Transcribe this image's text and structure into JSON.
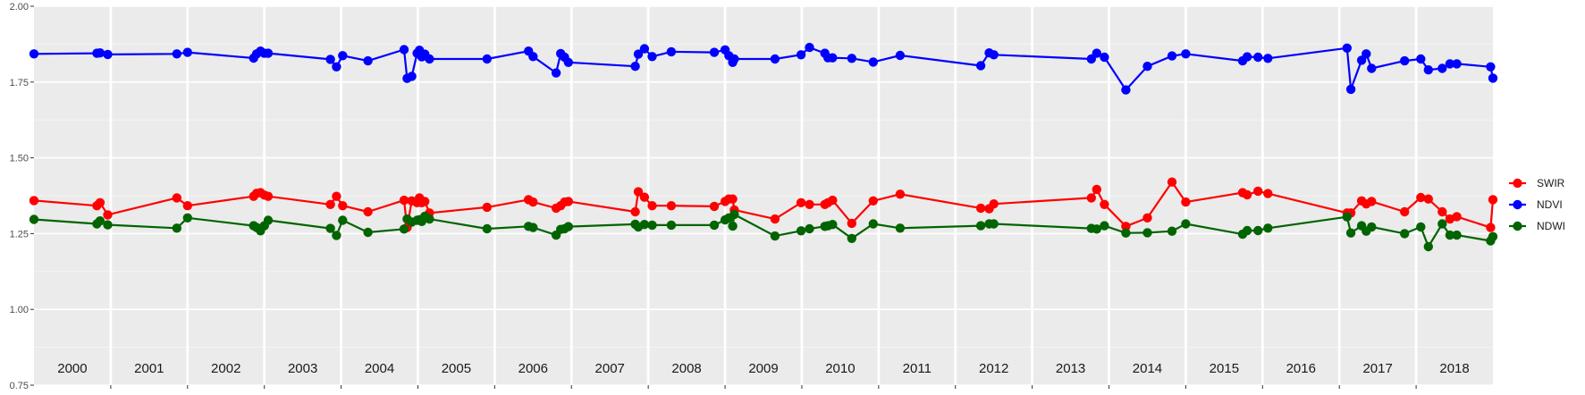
{
  "chart_data": {
    "type": "line",
    "title": "",
    "xlabel": "",
    "ylabel": "",
    "xlim": [
      2000.0,
      2019.0
    ],
    "ylim": [
      0.75,
      2.0
    ],
    "grid": true,
    "legend_position": "right",
    "y_ticks": [
      0.75,
      1.0,
      1.25,
      1.5,
      1.75,
      2.0
    ],
    "y_tick_labels": [
      "0.75",
      "1.00",
      "1.25",
      "1.50",
      "1.75",
      "2.00"
    ],
    "year_panels": [
      "2000",
      "2001",
      "2002",
      "2003",
      "2004",
      "2005",
      "2006",
      "2007",
      "2008",
      "2009",
      "2010",
      "2011",
      "2012",
      "2013",
      "2014",
      "2015",
      "2016",
      "2017",
      "2018"
    ],
    "series": [
      {
        "name": "SWIR",
        "color": "#ff0000",
        "x": [
          2000.0,
          2000.82,
          2000.86,
          2000.96,
          2001.86,
          2002.0,
          2002.86,
          2002.9,
          2002.95,
          2003.0,
          2003.05,
          2003.86,
          2003.94,
          2004.02,
          2004.35,
          2004.82,
          2004.86,
          2004.92,
          2004.99,
          2005.02,
          2005.05,
          2005.09,
          2005.15,
          2005.9,
          2006.44,
          2006.5,
          2006.8,
          2006.86,
          2006.91,
          2006.96,
          2007.83,
          2007.87,
          2007.95,
          2008.05,
          2008.3,
          2008.86,
          2009.0,
          2009.05,
          2009.1,
          2009.12,
          2009.65,
          2009.99,
          2010.1,
          2010.3,
          2010.34,
          2010.4,
          2010.65,
          2010.93,
          2011.28,
          2012.33,
          2012.44,
          2012.5,
          2013.77,
          2013.84,
          2013.94,
          2014.22,
          2014.5,
          2014.82,
          2015.0,
          2015.74,
          2015.8,
          2015.94,
          2016.07,
          2017.1,
          2017.15,
          2017.29,
          2017.35,
          2017.42,
          2017.85,
          2018.06,
          2018.16,
          2018.34,
          2018.44,
          2018.53,
          2018.97,
          2019.0
        ],
        "values": [
          1.359,
          1.342,
          1.352,
          1.312,
          1.368,
          1.342,
          1.373,
          1.383,
          1.385,
          1.377,
          1.373,
          1.346,
          1.373,
          1.342,
          1.322,
          1.36,
          1.27,
          1.358,
          1.352,
          1.368,
          1.352,
          1.356,
          1.318,
          1.337,
          1.362,
          1.354,
          1.334,
          1.342,
          1.354,
          1.356,
          1.322,
          1.388,
          1.37,
          1.342,
          1.342,
          1.34,
          1.356,
          1.364,
          1.364,
          1.328,
          1.298,
          1.352,
          1.346,
          1.346,
          1.352,
          1.36,
          1.284,
          1.358,
          1.38,
          1.334,
          1.332,
          1.348,
          1.368,
          1.396,
          1.346,
          1.274,
          1.302,
          1.42,
          1.354,
          1.385,
          1.378,
          1.39,
          1.382,
          1.318,
          1.318,
          1.358,
          1.348,
          1.356,
          1.322,
          1.369,
          1.364,
          1.322,
          1.298,
          1.306,
          1.27,
          1.362
        ]
      },
      {
        "name": "NDVI",
        "color": "#0000ff",
        "x": [
          2000.0,
          2000.82,
          2000.86,
          2000.96,
          2001.86,
          2002.0,
          2002.86,
          2002.9,
          2002.95,
          2003.0,
          2003.05,
          2003.86,
          2003.94,
          2004.02,
          2004.35,
          2004.82,
          2004.86,
          2004.92,
          2004.99,
          2005.02,
          2005.05,
          2005.09,
          2005.15,
          2005.9,
          2006.44,
          2006.5,
          2006.8,
          2006.86,
          2006.91,
          2006.96,
          2007.83,
          2007.87,
          2007.95,
          2008.05,
          2008.3,
          2008.86,
          2009.0,
          2009.05,
          2009.1,
          2009.12,
          2009.65,
          2009.99,
          2010.1,
          2010.3,
          2010.34,
          2010.4,
          2010.65,
          2010.93,
          2011.28,
          2012.33,
          2012.44,
          2012.5,
          2013.77,
          2013.84,
          2013.94,
          2014.22,
          2014.5,
          2014.82,
          2015.0,
          2015.74,
          2015.8,
          2015.94,
          2016.07,
          2017.1,
          2017.15,
          2017.29,
          2017.35,
          2017.42,
          2017.85,
          2018.06,
          2018.16,
          2018.34,
          2018.44,
          2018.53,
          2018.97,
          2019.0
        ],
        "values": [
          1.843,
          1.845,
          1.846,
          1.841,
          1.843,
          1.848,
          1.829,
          1.843,
          1.852,
          1.845,
          1.845,
          1.825,
          1.8,
          1.837,
          1.82,
          1.857,
          1.762,
          1.769,
          1.845,
          1.855,
          1.833,
          1.842,
          1.826,
          1.826,
          1.852,
          1.834,
          1.78,
          1.844,
          1.832,
          1.815,
          1.802,
          1.842,
          1.86,
          1.834,
          1.85,
          1.848,
          1.856,
          1.837,
          1.815,
          1.826,
          1.826,
          1.84,
          1.864,
          1.845,
          1.83,
          1.83,
          1.828,
          1.816,
          1.838,
          1.804,
          1.846,
          1.84,
          1.826,
          1.845,
          1.832,
          1.724,
          1.802,
          1.836,
          1.843,
          1.82,
          1.833,
          1.832,
          1.828,
          1.862,
          1.726,
          1.822,
          1.843,
          1.795,
          1.82,
          1.826,
          1.79,
          1.795,
          1.81,
          1.81,
          1.8,
          1.763
        ]
      },
      {
        "name": "NDWI",
        "color": "#006400",
        "x": [
          2000.0,
          2000.82,
          2000.86,
          2000.96,
          2001.86,
          2002.0,
          2002.86,
          2002.9,
          2002.95,
          2003.0,
          2003.05,
          2003.86,
          2003.94,
          2004.02,
          2004.35,
          2004.82,
          2004.86,
          2004.92,
          2004.99,
          2005.02,
          2005.05,
          2005.09,
          2005.15,
          2005.9,
          2006.44,
          2006.5,
          2006.8,
          2006.86,
          2006.91,
          2006.96,
          2007.83,
          2007.87,
          2007.95,
          2008.05,
          2008.3,
          2008.86,
          2009.0,
          2009.05,
          2009.1,
          2009.12,
          2009.65,
          2009.99,
          2010.1,
          2010.3,
          2010.34,
          2010.4,
          2010.65,
          2010.93,
          2011.28,
          2012.33,
          2012.44,
          2012.5,
          2013.77,
          2013.84,
          2013.94,
          2014.22,
          2014.5,
          2014.82,
          2015.0,
          2015.74,
          2015.8,
          2015.94,
          2016.07,
          2017.1,
          2017.15,
          2017.29,
          2017.35,
          2017.42,
          2017.85,
          2018.06,
          2018.16,
          2018.34,
          2018.44,
          2018.53,
          2018.97,
          2019.0
        ],
        "values": [
          1.297,
          1.282,
          1.292,
          1.279,
          1.268,
          1.302,
          1.276,
          1.27,
          1.259,
          1.276,
          1.294,
          1.267,
          1.244,
          1.294,
          1.254,
          1.265,
          1.298,
          1.288,
          1.294,
          1.296,
          1.29,
          1.307,
          1.298,
          1.266,
          1.274,
          1.27,
          1.245,
          1.264,
          1.266,
          1.273,
          1.281,
          1.272,
          1.28,
          1.278,
          1.278,
          1.278,
          1.295,
          1.302,
          1.275,
          1.313,
          1.242,
          1.259,
          1.266,
          1.274,
          1.276,
          1.28,
          1.234,
          1.282,
          1.268,
          1.276,
          1.282,
          1.282,
          1.267,
          1.265,
          1.276,
          1.252,
          1.253,
          1.258,
          1.282,
          1.248,
          1.26,
          1.26,
          1.268,
          1.305,
          1.252,
          1.276,
          1.258,
          1.272,
          1.25,
          1.272,
          1.207,
          1.282,
          1.245,
          1.245,
          1.226,
          1.24
        ]
      }
    ]
  }
}
